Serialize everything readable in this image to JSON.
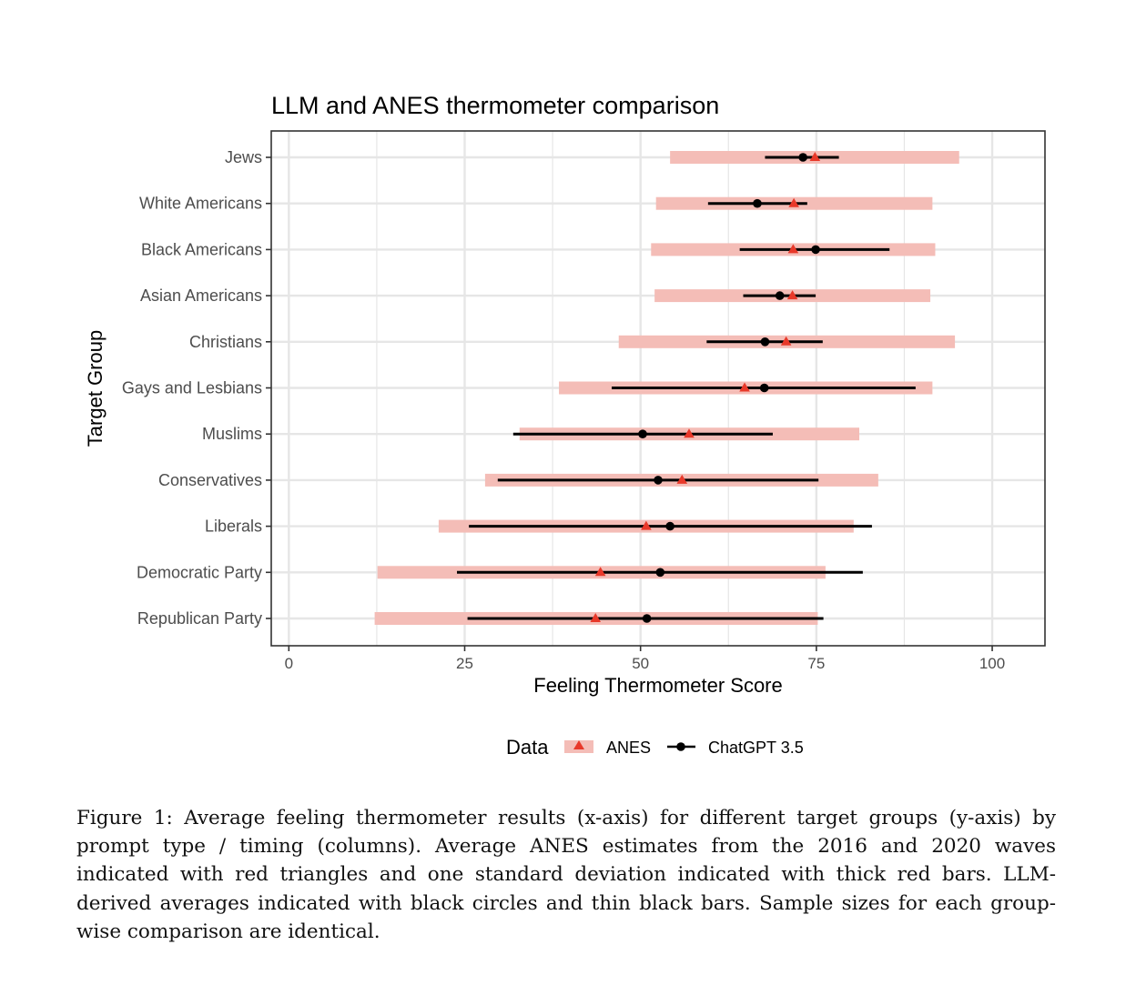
{
  "caption": "Figure 1: Average feeling thermometer results (x-axis) for different target groups (y-axis) by prompt type / timing (columns). Average ANES estimates from the 2016 and 2020 waves indicated with red triangles and one standard deviation indicated with thick red bars. LLM-derived averages indicated with black circles and thin black bars. Sample sizes for each group-wise comparison are identical.",
  "colors": {
    "anes": "#e8392a",
    "anes_bar": "#f4bdb7",
    "chatgpt": "#000000",
    "grid": "#e6e6e6"
  },
  "chart_data": {
    "type": "errorbar",
    "title": "LLM and ANES thermometer comparison",
    "xlabel": "Feeling Thermometer Score",
    "ylabel": "Target Group",
    "xlim": [
      -2.5,
      107.5
    ],
    "xticks": [
      0,
      25,
      50,
      75,
      100
    ],
    "grid": true,
    "legend": {
      "title": "Data",
      "position": "bottom",
      "entries": [
        "ANES",
        "ChatGPT 3.5"
      ]
    },
    "categories": [
      "Jews",
      "White Americans",
      "Black Americans",
      "Asian Americans",
      "Christians",
      "Gays and Lesbians",
      "Muslims",
      "Conservatives",
      "Liberals",
      "Democratic Party",
      "Republican Party"
    ],
    "series": [
      {
        "name": "ANES",
        "marker": "triangle",
        "mean": [
          74.8,
          71.8,
          71.7,
          71.6,
          70.7,
          64.8,
          56.9,
          55.9,
          50.8,
          44.3,
          43.6
        ],
        "low": [
          54.2,
          52.2,
          51.5,
          52.0,
          46.9,
          38.4,
          32.8,
          27.9,
          21.3,
          12.6,
          12.2
        ],
        "high": [
          95.3,
          91.5,
          91.9,
          91.2,
          94.7,
          91.5,
          81.1,
          83.8,
          80.3,
          76.3,
          75.2
        ]
      },
      {
        "name": "ChatGPT 3.5",
        "marker": "circle",
        "mean": [
          73.1,
          66.6,
          74.9,
          69.8,
          67.7,
          67.6,
          50.3,
          52.5,
          54.2,
          52.8,
          50.9
        ],
        "low": [
          67.7,
          59.6,
          64.1,
          64.6,
          59.4,
          45.9,
          31.9,
          29.7,
          25.6,
          23.9,
          25.4
        ],
        "high": [
          78.2,
          73.7,
          85.4,
          74.9,
          75.9,
          89.1,
          68.8,
          75.3,
          82.9,
          81.6,
          76.0
        ]
      }
    ]
  }
}
